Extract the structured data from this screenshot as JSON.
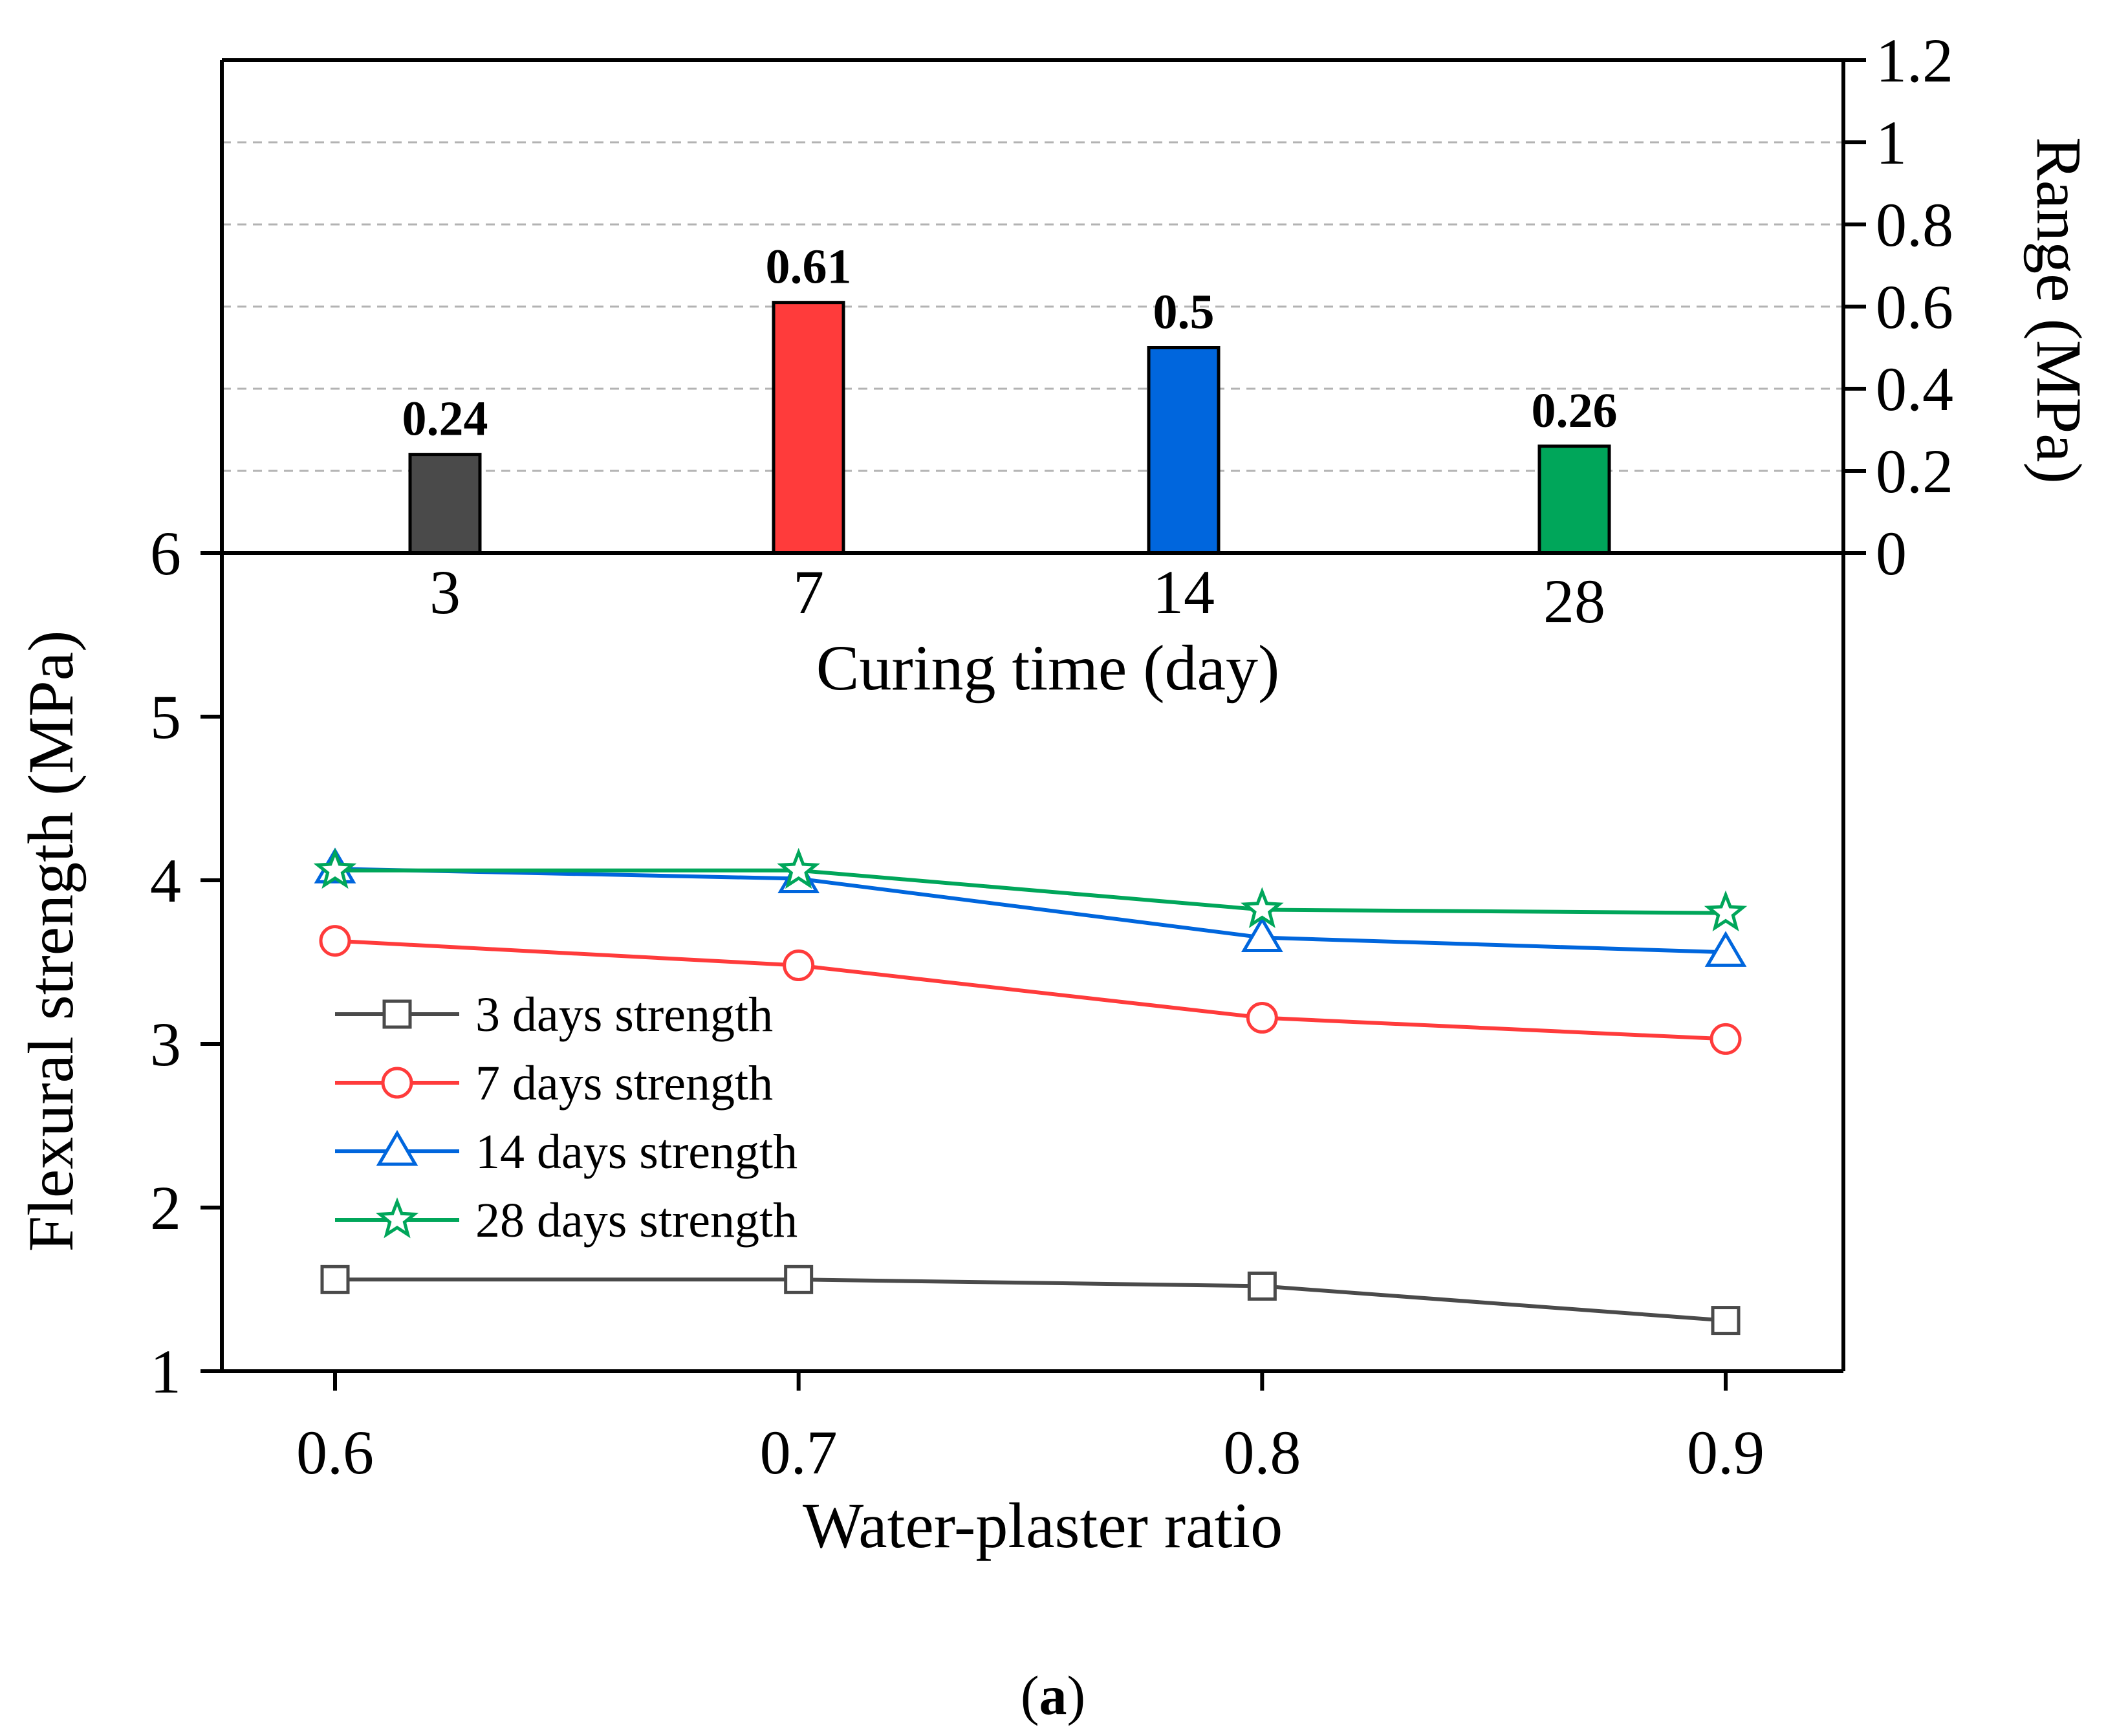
{
  "chart_data": [
    {
      "type": "bar",
      "categories": [
        "3",
        "7",
        "14",
        "28"
      ],
      "values": [
        0.24,
        0.61,
        0.5,
        0.26
      ],
      "value_labels": [
        "0.24",
        "0.61",
        "0.5",
        "0.26"
      ],
      "colors": [
        "#4a4a4a",
        "#ff3b3b",
        "#0066dd",
        "#00a65a"
      ],
      "xlabel": "Curing time (day)",
      "ylabel": "Range (MPa)",
      "ylim": [
        0,
        1.2
      ],
      "yticks": [
        0,
        0.2,
        0.4,
        0.6,
        0.8,
        1,
        1.2
      ],
      "ytick_labels": [
        "0",
        "0.2",
        "0.4",
        "0.6",
        "0.8",
        "1",
        "1.2"
      ],
      "grid": true,
      "y_axis_side": "right"
    },
    {
      "type": "line",
      "x": [
        0.6,
        0.7,
        0.8,
        0.9
      ],
      "xtick_labels": [
        "0.6",
        "0.7",
        "0.8",
        "0.9"
      ],
      "series": [
        {
          "name": "3 days strength",
          "values": [
            1.56,
            1.56,
            1.52,
            1.31
          ],
          "color": "#4a4a4a",
          "marker": "square"
        },
        {
          "name": "7 days strength",
          "values": [
            3.63,
            3.48,
            3.16,
            3.03
          ],
          "color": "#ff3b3b",
          "marker": "circle"
        },
        {
          "name": "14 days strength",
          "values": [
            4.07,
            4.01,
            3.65,
            3.56
          ],
          "color": "#0066dd",
          "marker": "triangle"
        },
        {
          "name": "28 days strength",
          "values": [
            4.06,
            4.06,
            3.82,
            3.8
          ],
          "color": "#00a65a",
          "marker": "star"
        }
      ],
      "xlabel": "Water-plaster ratio",
      "ylabel": "Flexural strength (MPa)",
      "ylim": [
        1,
        6
      ],
      "yticks": [
        1,
        2,
        3,
        4,
        5,
        6
      ],
      "ytick_labels": [
        "1",
        "2",
        "3",
        "4",
        "5",
        "6"
      ],
      "legend_position": "lower-left"
    }
  ],
  "caption": {
    "open": "(",
    "letter": "a",
    "close": ")"
  }
}
